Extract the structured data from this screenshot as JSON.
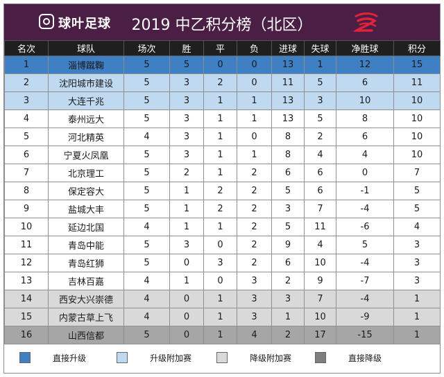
{
  "header": {
    "logo_text": "球叶足球",
    "title": "2019 中乙积分榜（北区）",
    "brand_color": "#4b1f45"
  },
  "table": {
    "columns": [
      "名次",
      "球队",
      "场次",
      "胜",
      "平",
      "负",
      "进球",
      "失球",
      "净胜球",
      "积分"
    ],
    "rows": [
      {
        "status": "promote",
        "cells": [
          "1",
          "淄博蹴鞠",
          "5",
          "5",
          "0",
          "0",
          "13",
          "1",
          "12",
          "15"
        ]
      },
      {
        "status": "promote-playoff",
        "cells": [
          "2",
          "沈阳城市建设",
          "5",
          "3",
          "2",
          "0",
          "11",
          "5",
          "6",
          "11"
        ]
      },
      {
        "status": "promote-playoff",
        "cells": [
          "3",
          "大连千兆",
          "5",
          "3",
          "1",
          "1",
          "13",
          "3",
          "10",
          "10"
        ]
      },
      {
        "status": "normal",
        "cells": [
          "4",
          "泰州远大",
          "5",
          "3",
          "1",
          "1",
          "13",
          "5",
          "8",
          "10"
        ]
      },
      {
        "status": "normal",
        "cells": [
          "5",
          "河北精英",
          "4",
          "3",
          "1",
          "0",
          "8",
          "2",
          "6",
          "10"
        ]
      },
      {
        "status": "normal",
        "cells": [
          "6",
          "宁夏火凤凰",
          "5",
          "3",
          "1",
          "1",
          "8",
          "4",
          "4",
          "10"
        ]
      },
      {
        "status": "normal",
        "cells": [
          "7",
          "北京理工",
          "5",
          "2",
          "1",
          "2",
          "6",
          "6",
          "0",
          "7"
        ]
      },
      {
        "status": "normal",
        "cells": [
          "8",
          "保定容大",
          "5",
          "1",
          "2",
          "2",
          "5",
          "6",
          "-1",
          "5"
        ]
      },
      {
        "status": "normal",
        "cells": [
          "9",
          "盐城大丰",
          "5",
          "1",
          "2",
          "2",
          "3",
          "7",
          "-4",
          "5"
        ]
      },
      {
        "status": "normal",
        "cells": [
          "10",
          "延边北国",
          "4",
          "1",
          "1",
          "2",
          "5",
          "11",
          "-6",
          "4"
        ]
      },
      {
        "status": "normal",
        "cells": [
          "11",
          "青岛中能",
          "5",
          "3",
          "0",
          "2",
          "9",
          "4",
          "5",
          "3"
        ]
      },
      {
        "status": "normal",
        "cells": [
          "12",
          "青岛红狮",
          "5",
          "0",
          "3",
          "2",
          "6",
          "10",
          "-4",
          "3"
        ]
      },
      {
        "status": "normal",
        "cells": [
          "13",
          "吉林百嘉",
          "4",
          "1",
          "0",
          "3",
          "2",
          "9",
          "-7",
          "3"
        ]
      },
      {
        "status": "relegate-playoff",
        "cells": [
          "14",
          "西安大兴崇德",
          "4",
          "0",
          "1",
          "3",
          "3",
          "7",
          "-4",
          "1"
        ]
      },
      {
        "status": "relegate-playoff",
        "cells": [
          "15",
          "内蒙古草上飞",
          "4",
          "0",
          "1",
          "3",
          "1",
          "10",
          "-9",
          "1"
        ]
      },
      {
        "status": "relegate",
        "cells": [
          "16",
          "山西信都",
          "5",
          "0",
          "1",
          "4",
          "2",
          "17",
          "-15",
          "1"
        ]
      }
    ]
  },
  "legend": [
    {
      "label": "直接升级",
      "color": "#3f7fc3"
    },
    {
      "label": "升级附加赛",
      "color": "#bfd9f1"
    },
    {
      "label": "降级附加赛",
      "color": "#d9d9d9"
    },
    {
      "label": "直接降级",
      "color": "#7f7f7f"
    }
  ]
}
